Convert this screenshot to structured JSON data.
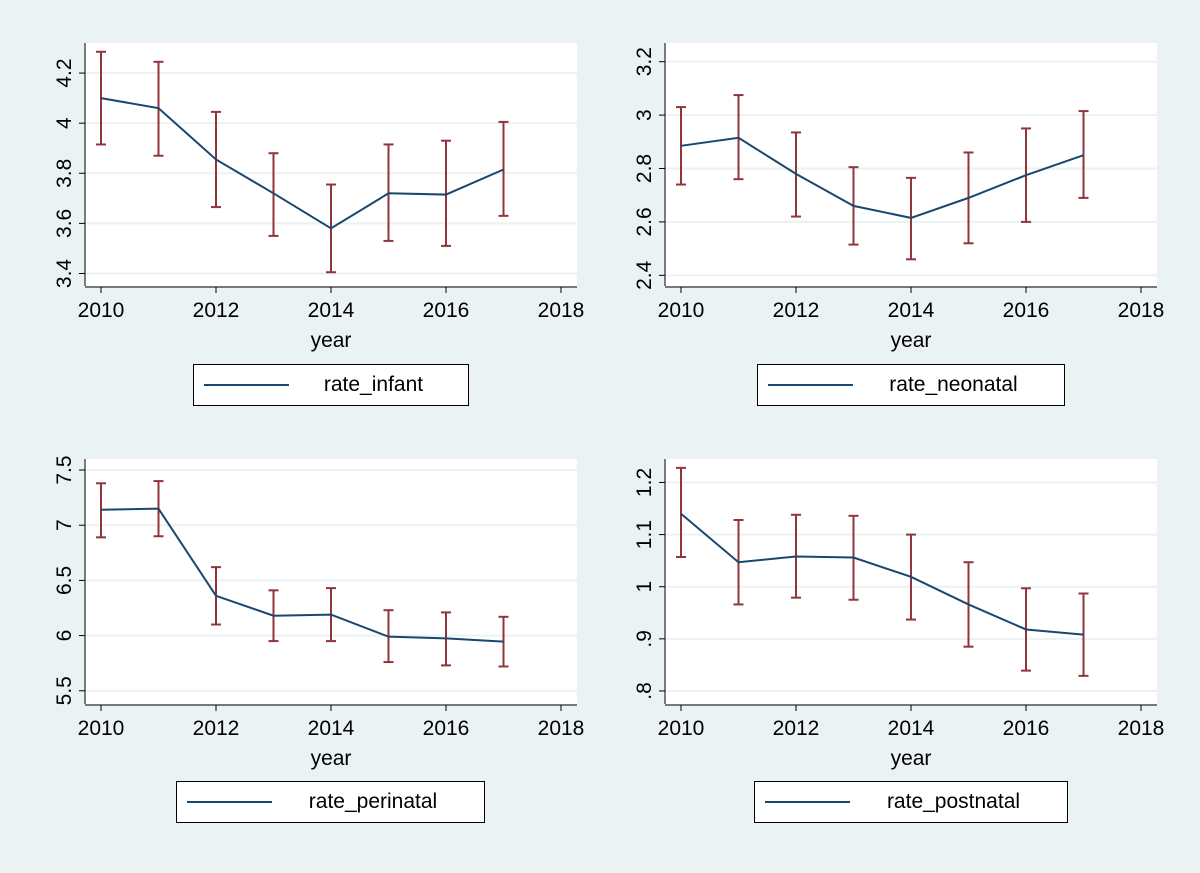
{
  "chart_data": [
    {
      "type": "line",
      "xlabel": "year",
      "ylabel": "",
      "xlim": [
        2010,
        2018
      ],
      "ylim": [
        3.35,
        4.32
      ],
      "x_ticks": [
        2010,
        2012,
        2014,
        2016,
        2018
      ],
      "x_tick_labels": [
        "2010",
        "2012",
        "2014",
        "2016",
        "2018"
      ],
      "y_ticks": [
        3.4,
        3.6,
        3.8,
        4,
        4.2
      ],
      "y_tick_labels": [
        "3.4",
        "3.6",
        "3.8",
        "4",
        "4.2"
      ],
      "grid": true,
      "legend_position": "bottom",
      "series": [
        {
          "name": "rate_infant",
          "x": [
            2010,
            2011,
            2012,
            2013,
            2014,
            2015,
            2016,
            2017
          ],
          "values": [
            4.1,
            4.06,
            3.855,
            3.72,
            3.58,
            3.72,
            3.715,
            3.815
          ],
          "ci_lower": [
            3.915,
            3.87,
            3.665,
            3.55,
            3.405,
            3.53,
            3.51,
            3.63
          ],
          "ci_upper": [
            4.285,
            4.245,
            4.045,
            3.88,
            3.755,
            3.915,
            3.93,
            4.005
          ]
        }
      ]
    },
    {
      "type": "line",
      "xlabel": "year",
      "ylabel": "",
      "xlim": [
        2010,
        2018
      ],
      "ylim": [
        2.36,
        3.27
      ],
      "x_ticks": [
        2010,
        2012,
        2014,
        2016,
        2018
      ],
      "x_tick_labels": [
        "2010",
        "2012",
        "2014",
        "2016",
        "2018"
      ],
      "y_ticks": [
        2.4,
        2.6,
        2.8,
        3,
        3.2
      ],
      "y_tick_labels": [
        "2.4",
        "2.6",
        "2.8",
        "3",
        "3.2"
      ],
      "grid": true,
      "legend_position": "bottom",
      "series": [
        {
          "name": "rate_neonatal",
          "x": [
            2010,
            2011,
            2012,
            2013,
            2014,
            2015,
            2016,
            2017
          ],
          "values": [
            2.885,
            2.915,
            2.78,
            2.66,
            2.615,
            2.69,
            2.775,
            2.85
          ],
          "ci_lower": [
            2.74,
            2.76,
            2.62,
            2.515,
            2.46,
            2.52,
            2.6,
            2.69
          ],
          "ci_upper": [
            3.03,
            3.075,
            2.935,
            2.805,
            2.765,
            2.86,
            2.95,
            3.015
          ]
        }
      ]
    },
    {
      "type": "line",
      "xlabel": "year",
      "ylabel": "",
      "xlim": [
        2010,
        2018
      ],
      "ylim": [
        5.38,
        7.6
      ],
      "x_ticks": [
        2010,
        2012,
        2014,
        2016,
        2018
      ],
      "x_tick_labels": [
        "2010",
        "2012",
        "2014",
        "2016",
        "2018"
      ],
      "y_ticks": [
        5.5,
        6,
        6.5,
        7,
        7.5
      ],
      "y_tick_labels": [
        "5.5",
        "6",
        "6.5",
        "7",
        "7.5"
      ],
      "grid": true,
      "legend_position": "bottom",
      "series": [
        {
          "name": "rate_perinatal",
          "x": [
            2010,
            2011,
            2012,
            2013,
            2014,
            2015,
            2016,
            2017
          ],
          "values": [
            7.14,
            7.15,
            6.36,
            6.18,
            6.19,
            5.99,
            5.975,
            5.945
          ],
          "ci_lower": [
            6.89,
            6.9,
            6.1,
            5.95,
            5.95,
            5.76,
            5.73,
            5.72
          ],
          "ci_upper": [
            7.38,
            7.4,
            6.62,
            6.41,
            6.43,
            6.23,
            6.21,
            6.17
          ]
        }
      ]
    },
    {
      "type": "line",
      "xlabel": "year",
      "ylabel": "",
      "xlim": [
        2010,
        2018
      ],
      "ylim": [
        0.775,
        1.245
      ],
      "x_ticks": [
        2010,
        2012,
        2014,
        2016,
        2018
      ],
      "x_tick_labels": [
        "2010",
        "2012",
        "2014",
        "2016",
        "2018"
      ],
      "y_ticks": [
        0.8,
        0.9,
        1,
        1.1,
        1.2
      ],
      "y_tick_labels": [
        ".8",
        ".9",
        "1",
        "1.1",
        "1.2"
      ],
      "grid": true,
      "legend_position": "bottom",
      "series": [
        {
          "name": "rate_postnatal",
          "x": [
            2010,
            2011,
            2012,
            2013,
            2014,
            2015,
            2016,
            2017
          ],
          "values": [
            1.14,
            1.047,
            1.058,
            1.056,
            1.019,
            0.966,
            0.918,
            0.908
          ],
          "ci_lower": [
            1.057,
            0.966,
            0.979,
            0.975,
            0.937,
            0.885,
            0.839,
            0.829
          ],
          "ci_upper": [
            1.228,
            1.128,
            1.138,
            1.136,
            1.1,
            1.047,
            0.997,
            0.987
          ]
        }
      ]
    }
  ],
  "colors": {
    "background": "#eaf2f3",
    "plot_background": "#ffffff",
    "grid": "#eaf2f3",
    "line": "#1a476f",
    "ci_caps": "#90353b"
  }
}
